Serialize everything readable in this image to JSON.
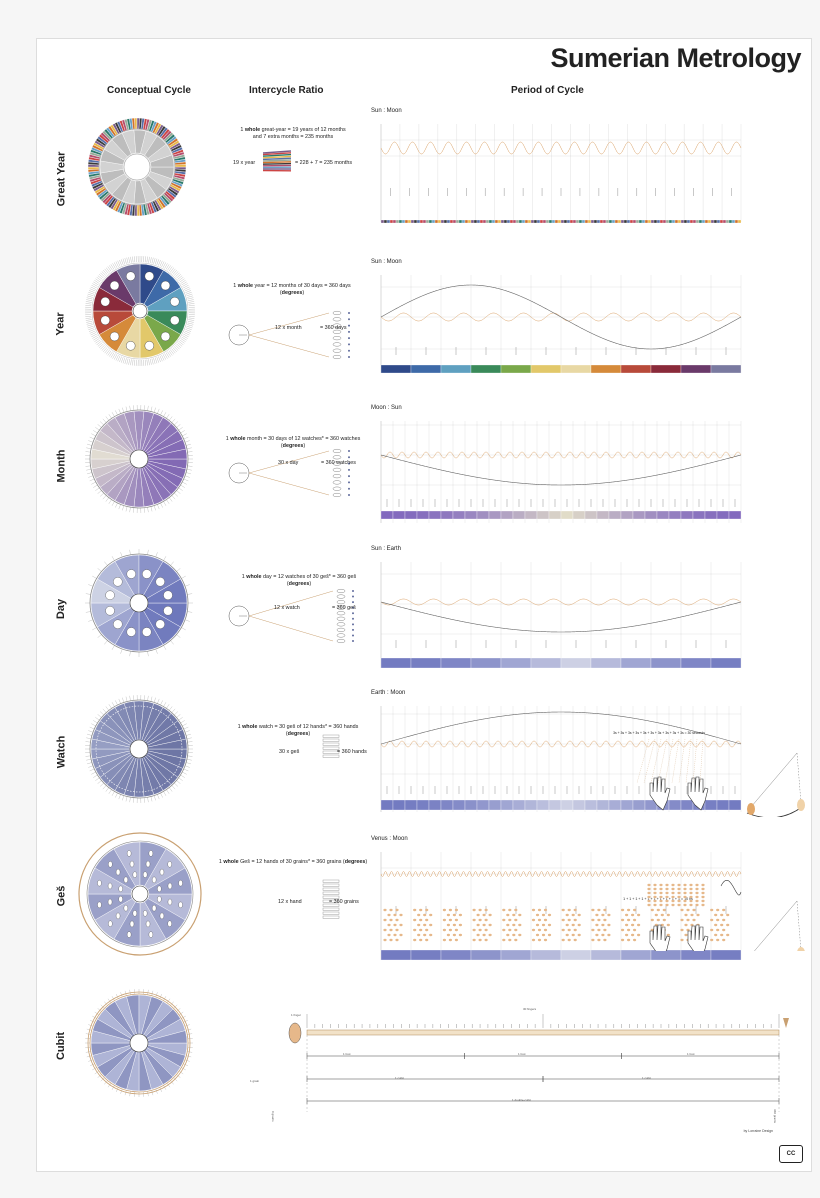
{
  "title": "Sumerian Metrology",
  "columns": {
    "conceptual": "Conceptual Cycle",
    "ratio": "Intercycle Ratio",
    "period": "Period of Cycle"
  },
  "rows": {
    "great_year": {
      "label": "Great Year",
      "eq_pre": "1",
      "eq_bold": "whole",
      "eq_rest": "great-year = 19 years of 12 months",
      "eq_line2": "and 7 extra months = 235 months",
      "formula_left": "19 x year",
      "formula_right": "= 228 + 7 = 235 months",
      "panel_title": "Sun : Moon"
    },
    "year": {
      "label": "Year",
      "eq_pre": "1",
      "eq_bold": "whole",
      "eq_rest": "year = 12 months of 30 days = 360 days (",
      "eq_deg": "degrees",
      "eq_close": ")",
      "formula_left": "12 x month",
      "formula_right": "= 360 days",
      "panel_title": "Sun : Moon"
    },
    "month": {
      "label": "Month",
      "eq_pre": "1",
      "eq_bold": "whole",
      "eq_rest": "month = 30 days of 12 watches* = 360 watches (",
      "eq_deg": "degrees",
      "eq_close": ")",
      "formula_left": "30 x day",
      "formula_right": "= 360 watches",
      "panel_title": "Moon : Sun"
    },
    "day": {
      "label": "Day",
      "eq_pre": "1",
      "eq_bold": "whole",
      "eq_rest": "day = 12 watches of 30 geš* = 360 geš (",
      "eq_deg": "degrees",
      "eq_close": ")",
      "formula_left": "12 x watch",
      "formula_right": "= 360 geš",
      "panel_title": "Sun : Earth"
    },
    "watch": {
      "label": "Watch",
      "eq_pre": "1",
      "eq_bold": "whole",
      "eq_rest": "watch = 30 geš of 12 hands* = 360 hands (",
      "eq_deg": "degrees",
      "eq_close": ")",
      "formula_left": "30 x geš",
      "formula_right": "= 360 hands",
      "panel_title": "Earth : Moon",
      "seconds_line": "3s + 3s + 3s + 3s + 3s + 3s + 3s + 3s + 3s + 3s = 30 seconds"
    },
    "ges": {
      "label": "Geš",
      "eq_pre": "1",
      "eq_bold": "whole",
      "eq_rest": "Geš = 12 hands of 30 grains* = 360 grains (",
      "eq_deg": "degrees",
      "eq_close": ")",
      "formula_left": "12 x hand",
      "formula_right": "= 360 grains",
      "panel_title": "Venus : Moon",
      "seconds_line": "1 + 1 + 1 + 1 + 1 + 1 + 1 + 1 + 1 + 1 = 10 hs"
    },
    "cubit": {
      "label": "Cubit"
    }
  },
  "cubit_ruler": {
    "finger": "1 finger",
    "fingers_30": "30 fingers",
    "foot": "1 foot",
    "cubit": "1 cubit",
    "double_cubit": "1 double-cubit",
    "grain": "1 grain",
    "grains_left": "0 grains",
    "grains_right": "360 grains"
  },
  "credit": "by Lorraine Design",
  "license": "CC",
  "colors": {
    "wave_orange": "#d89a5a",
    "wave_grey": "#888888",
    "wheel_blue": "#5f6b9c",
    "wheel_light": "#c8cde0",
    "tan": "#c9a071"
  }
}
